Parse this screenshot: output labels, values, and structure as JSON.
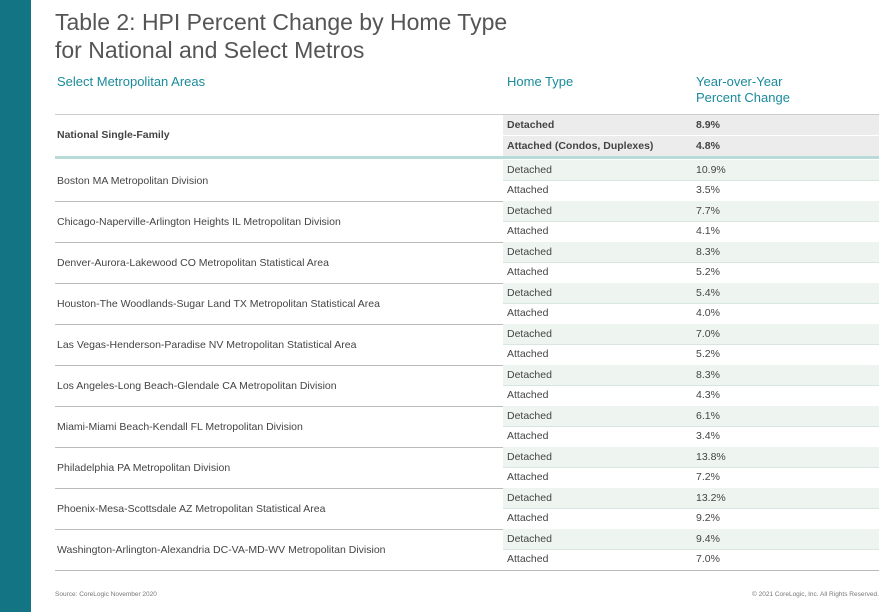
{
  "header": {
    "title": "Table 2: HPI Percent Change by Home Type\nfor National and Select Metros"
  },
  "table": {
    "columns": [
      "Select Metropolitan Areas",
      "Home Type",
      "Year-over-Year\nPercent Change"
    ],
    "national": {
      "area": "National Single-Family",
      "rows": [
        {
          "type": "Detached",
          "change": "8.9%"
        },
        {
          "type": "Attached (Condos, Duplexes)",
          "change": "4.8%"
        }
      ]
    },
    "metros": [
      {
        "area": "Boston MA Metropolitan Division",
        "rows": [
          {
            "type": "Detached",
            "change": "10.9%"
          },
          {
            "type": "Attached",
            "change": "3.5%"
          }
        ]
      },
      {
        "area": "Chicago-Naperville-Arlington Heights IL Metropolitan Division",
        "rows": [
          {
            "type": "Detached",
            "change": "7.7%"
          },
          {
            "type": "Attached",
            "change": "4.1%"
          }
        ]
      },
      {
        "area": "Denver-Aurora-Lakewood CO Metropolitan Statistical Area",
        "rows": [
          {
            "type": "Detached",
            "change": "8.3%"
          },
          {
            "type": "Attached",
            "change": "5.2%"
          }
        ]
      },
      {
        "area": "Houston-The Woodlands-Sugar Land TX Metropolitan Statistical Area",
        "rows": [
          {
            "type": "Detached",
            "change": "5.4%"
          },
          {
            "type": "Attached",
            "change": "4.0%"
          }
        ]
      },
      {
        "area": "Las Vegas-Henderson-Paradise NV Metropolitan Statistical Area",
        "rows": [
          {
            "type": "Detached",
            "change": "7.0%"
          },
          {
            "type": "Attached",
            "change": "5.2%"
          }
        ]
      },
      {
        "area": "Los Angeles-Long Beach-Glendale CA Metropolitan Division",
        "rows": [
          {
            "type": "Detached",
            "change": "8.3%"
          },
          {
            "type": "Attached",
            "change": "4.3%"
          }
        ]
      },
      {
        "area": "Miami-Miami Beach-Kendall FL Metropolitan Division",
        "rows": [
          {
            "type": "Detached",
            "change": "6.1%"
          },
          {
            "type": "Attached",
            "change": "3.4%"
          }
        ]
      },
      {
        "area": "Philadelphia PA Metropolitan Division",
        "rows": [
          {
            "type": "Detached",
            "change": "13.8%"
          },
          {
            "type": "Attached",
            "change": "7.2%"
          }
        ]
      },
      {
        "area": "Phoenix-Mesa-Scottsdale AZ Metropolitan Statistical Area",
        "rows": [
          {
            "type": "Detached",
            "change": "13.2%"
          },
          {
            "type": "Attached",
            "change": "9.2%"
          }
        ]
      },
      {
        "area": "Washington-Arlington-Alexandria DC-VA-MD-WV Metropolitan Division",
        "rows": [
          {
            "type": "Detached",
            "change": "9.4%"
          },
          {
            "type": "Attached",
            "change": "7.0%"
          }
        ]
      }
    ]
  },
  "footer": {
    "source": "Source: CoreLogic November 2020",
    "copyright": "© 2021 CoreLogic, Inc. All Rights Reserved."
  }
}
